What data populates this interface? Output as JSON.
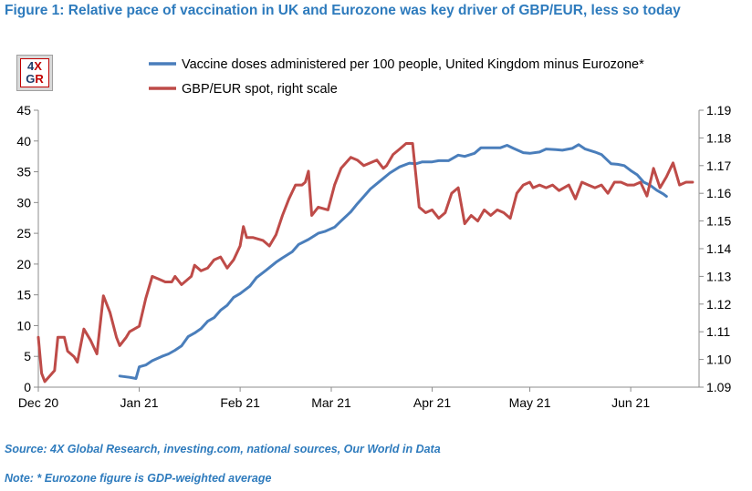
{
  "title": "Figure 1: Relative pace of vaccination in UK and Eurozone was key driver of GBP/EUR, less so today",
  "logo": {
    "line1_a": "4",
    "line1_b": "X",
    "line2_a": "G",
    "line2_b": "R"
  },
  "source": "Source: 4X Global Research, investing.com, national sources, Our World in Data",
  "note": "Note: * Eurozone figure is GDP-weighted average",
  "colors": {
    "vaccine": "#4a7ebb",
    "gbpeur": "#be4b48",
    "text_accent": "#2e7bbd"
  },
  "chart_data": {
    "type": "line",
    "x_ticks": [
      "Dec 20",
      "Jan 21",
      "Feb 21",
      "Mar 21",
      "Apr 21",
      "May 21",
      "Jun 21"
    ],
    "x_tick_day_index": [
      0,
      31,
      62,
      90,
      121,
      151,
      182
    ],
    "x_range_days": [
      0,
      203
    ],
    "y_left": {
      "min": 0,
      "max": 45,
      "step": 5,
      "ticks": [
        "0",
        "5",
        "10",
        "15",
        "20",
        "25",
        "30",
        "35",
        "40",
        "45"
      ]
    },
    "y_right": {
      "min": 1.09,
      "max": 1.19,
      "step": 0.01,
      "ticks": [
        "1.09",
        "1.10",
        "1.11",
        "1.12",
        "1.13",
        "1.14",
        "1.15",
        "1.16",
        "1.17",
        "1.18",
        "1.19"
      ]
    },
    "series": [
      {
        "name": "Vaccine doses administered per 100 people, United Kingdom minus Eurozone*",
        "axis": "left",
        "points": [
          [
            25,
            1.8
          ],
          [
            28,
            1.6
          ],
          [
            30,
            1.4
          ],
          [
            31,
            3.3
          ],
          [
            33,
            3.6
          ],
          [
            35,
            4.3
          ],
          [
            38,
            5.0
          ],
          [
            40,
            5.4
          ],
          [
            42,
            6.0
          ],
          [
            44,
            6.7
          ],
          [
            46,
            8.2
          ],
          [
            48,
            8.8
          ],
          [
            50,
            9.5
          ],
          [
            52,
            10.7
          ],
          [
            54,
            11.3
          ],
          [
            56,
            12.5
          ],
          [
            58,
            13.3
          ],
          [
            60,
            14.6
          ],
          [
            62,
            15.2
          ],
          [
            65,
            16.4
          ],
          [
            67,
            17.8
          ],
          [
            70,
            19.0
          ],
          [
            73,
            20.3
          ],
          [
            75,
            21.0
          ],
          [
            78,
            22.0
          ],
          [
            80,
            23.2
          ],
          [
            83,
            24.0
          ],
          [
            86,
            25.0
          ],
          [
            88,
            25.3
          ],
          [
            91,
            26.0
          ],
          [
            93,
            27.0
          ],
          [
            96,
            28.5
          ],
          [
            98,
            29.8
          ],
          [
            100,
            31.0
          ],
          [
            102,
            32.2
          ],
          [
            105,
            33.5
          ],
          [
            108,
            34.8
          ],
          [
            111,
            35.8
          ],
          [
            114,
            36.4
          ],
          [
            116,
            36.3
          ],
          [
            118,
            36.6
          ],
          [
            121,
            36.6
          ],
          [
            123,
            36.8
          ],
          [
            126,
            36.8
          ],
          [
            129,
            37.7
          ],
          [
            131,
            37.5
          ],
          [
            134,
            38.0
          ],
          [
            136,
            38.9
          ],
          [
            139,
            38.9
          ],
          [
            142,
            38.9
          ],
          [
            144,
            39.3
          ],
          [
            146,
            38.8
          ],
          [
            149,
            38.1
          ],
          [
            151,
            38.0
          ],
          [
            154,
            38.2
          ],
          [
            156,
            38.7
          ],
          [
            159,
            38.6
          ],
          [
            161,
            38.5
          ],
          [
            164,
            38.8
          ],
          [
            166,
            39.4
          ],
          [
            168,
            38.7
          ],
          [
            171,
            38.2
          ],
          [
            173,
            37.8
          ],
          [
            176,
            36.3
          ],
          [
            178,
            36.2
          ],
          [
            180,
            36.0
          ],
          [
            182,
            35.2
          ],
          [
            184,
            34.5
          ],
          [
            186,
            33.3
          ],
          [
            188,
            32.8
          ],
          [
            190,
            32.0
          ],
          [
            192,
            31.4
          ],
          [
            193,
            31.0
          ]
        ]
      },
      {
        "name": "GBP/EUR spot, right scale",
        "axis": "right",
        "points": [
          [
            0,
            1.108
          ],
          [
            1,
            1.095
          ],
          [
            2,
            1.092
          ],
          [
            5,
            1.096
          ],
          [
            6,
            1.108
          ],
          [
            8,
            1.108
          ],
          [
            9,
            1.103
          ],
          [
            11,
            1.101
          ],
          [
            12,
            1.099
          ],
          [
            14,
            1.111
          ],
          [
            16,
            1.107
          ],
          [
            18,
            1.102
          ],
          [
            20,
            1.123
          ],
          [
            22,
            1.117
          ],
          [
            24,
            1.108
          ],
          [
            25,
            1.105
          ],
          [
            27,
            1.108
          ],
          [
            28,
            1.11
          ],
          [
            31,
            1.112
          ],
          [
            33,
            1.122
          ],
          [
            35,
            1.13
          ],
          [
            37,
            1.129
          ],
          [
            39,
            1.128
          ],
          [
            41,
            1.128
          ],
          [
            42,
            1.13
          ],
          [
            44,
            1.127
          ],
          [
            46,
            1.129
          ],
          [
            47,
            1.13
          ],
          [
            48,
            1.134
          ],
          [
            50,
            1.132
          ],
          [
            52,
            1.133
          ],
          [
            54,
            1.136
          ],
          [
            56,
            1.137
          ],
          [
            58,
            1.133
          ],
          [
            60,
            1.136
          ],
          [
            62,
            1.141
          ],
          [
            63,
            1.148
          ],
          [
            64,
            1.144
          ],
          [
            66,
            1.144
          ],
          [
            69,
            1.143
          ],
          [
            71,
            1.141
          ],
          [
            73,
            1.145
          ],
          [
            75,
            1.152
          ],
          [
            77,
            1.158
          ],
          [
            79,
            1.163
          ],
          [
            81,
            1.163
          ],
          [
            82,
            1.164
          ],
          [
            83,
            1.168
          ],
          [
            84,
            1.152
          ],
          [
            86,
            1.155
          ],
          [
            89,
            1.154
          ],
          [
            91,
            1.163
          ],
          [
            93,
            1.169
          ],
          [
            96,
            1.173
          ],
          [
            98,
            1.172
          ],
          [
            100,
            1.17
          ],
          [
            104,
            1.172
          ],
          [
            106,
            1.169
          ],
          [
            107,
            1.17
          ],
          [
            109,
            1.174
          ],
          [
            111,
            1.176
          ],
          [
            113,
            1.178
          ],
          [
            115,
            1.178
          ],
          [
            117,
            1.155
          ],
          [
            119,
            1.153
          ],
          [
            121,
            1.154
          ],
          [
            123,
            1.151
          ],
          [
            125,
            1.153
          ],
          [
            127,
            1.16
          ],
          [
            129,
            1.162
          ],
          [
            131,
            1.149
          ],
          [
            133,
            1.152
          ],
          [
            135,
            1.15
          ],
          [
            137,
            1.154
          ],
          [
            139,
            1.152
          ],
          [
            141,
            1.154
          ],
          [
            143,
            1.153
          ],
          [
            145,
            1.151
          ],
          [
            147,
            1.16
          ],
          [
            149,
            1.163
          ],
          [
            151,
            1.164
          ],
          [
            152,
            1.162
          ],
          [
            154,
            1.163
          ],
          [
            156,
            1.162
          ],
          [
            158,
            1.163
          ],
          [
            160,
            1.161
          ],
          [
            163,
            1.163
          ],
          [
            165,
            1.158
          ],
          [
            167,
            1.164
          ],
          [
            169,
            1.163
          ],
          [
            171,
            1.162
          ],
          [
            173,
            1.163
          ],
          [
            175,
            1.16
          ],
          [
            177,
            1.164
          ],
          [
            179,
            1.164
          ],
          [
            181,
            1.163
          ],
          [
            183,
            1.163
          ],
          [
            185,
            1.164
          ],
          [
            187,
            1.159
          ],
          [
            189,
            1.169
          ],
          [
            191,
            1.162
          ],
          [
            193,
            1.166
          ],
          [
            195,
            1.171
          ],
          [
            197,
            1.163
          ],
          [
            199,
            1.164
          ],
          [
            201,
            1.164
          ]
        ]
      }
    ]
  }
}
